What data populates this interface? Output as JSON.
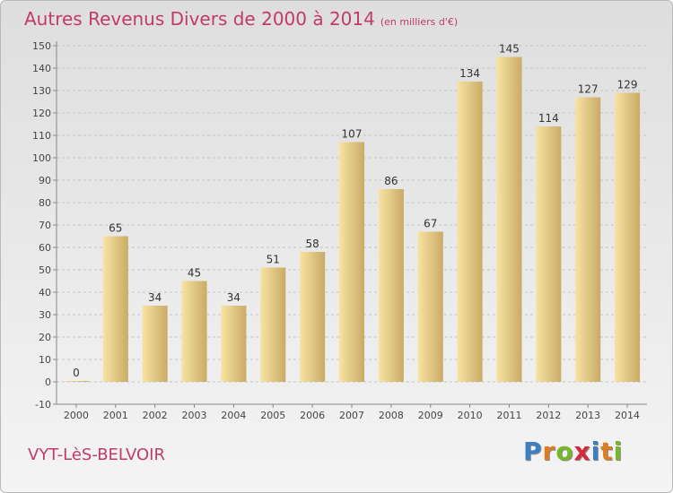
{
  "title": "Autres Revenus Divers de 2000 à 2014",
  "unit_label": "(en milliers d'€)",
  "commune": "VYT-LèS-BELVOIR",
  "logo": {
    "text": "Proxiti",
    "letters": [
      {
        "char": "P",
        "color": "#3d7fc2"
      },
      {
        "char": "r",
        "color": "#e07b20"
      },
      {
        "char": "o",
        "color": "#76b82a"
      },
      {
        "char": "x",
        "color": "#d62a3a"
      },
      {
        "char": "i",
        "color": "#3d7fc2"
      },
      {
        "char": "t",
        "color": "#e07b20"
      },
      {
        "char": "i",
        "color": "#76b82a"
      }
    ]
  },
  "colors": {
    "accent": "#c23a6a",
    "bar_light": "#f8e3a3",
    "bar_dark": "#c9ab65"
  },
  "chart_data": {
    "type": "bar",
    "title": "Autres Revenus Divers de 2000 à 2014",
    "subtitle": "(en milliers d'€)",
    "categories": [
      "2000",
      "2001",
      "2002",
      "2003",
      "2004",
      "2005",
      "2006",
      "2007",
      "2008",
      "2009",
      "2010",
      "2011",
      "2012",
      "2013",
      "2014"
    ],
    "values": [
      0,
      65,
      34,
      45,
      34,
      51,
      58,
      107,
      86,
      67,
      134,
      145,
      114,
      127,
      129
    ],
    "ylim": [
      -10,
      150
    ],
    "yticks": [
      -10,
      0,
      10,
      20,
      30,
      40,
      50,
      60,
      70,
      80,
      90,
      100,
      110,
      120,
      130,
      140,
      150
    ],
    "grid": "horizontal dashed",
    "xlabel": "",
    "ylabel": ""
  }
}
